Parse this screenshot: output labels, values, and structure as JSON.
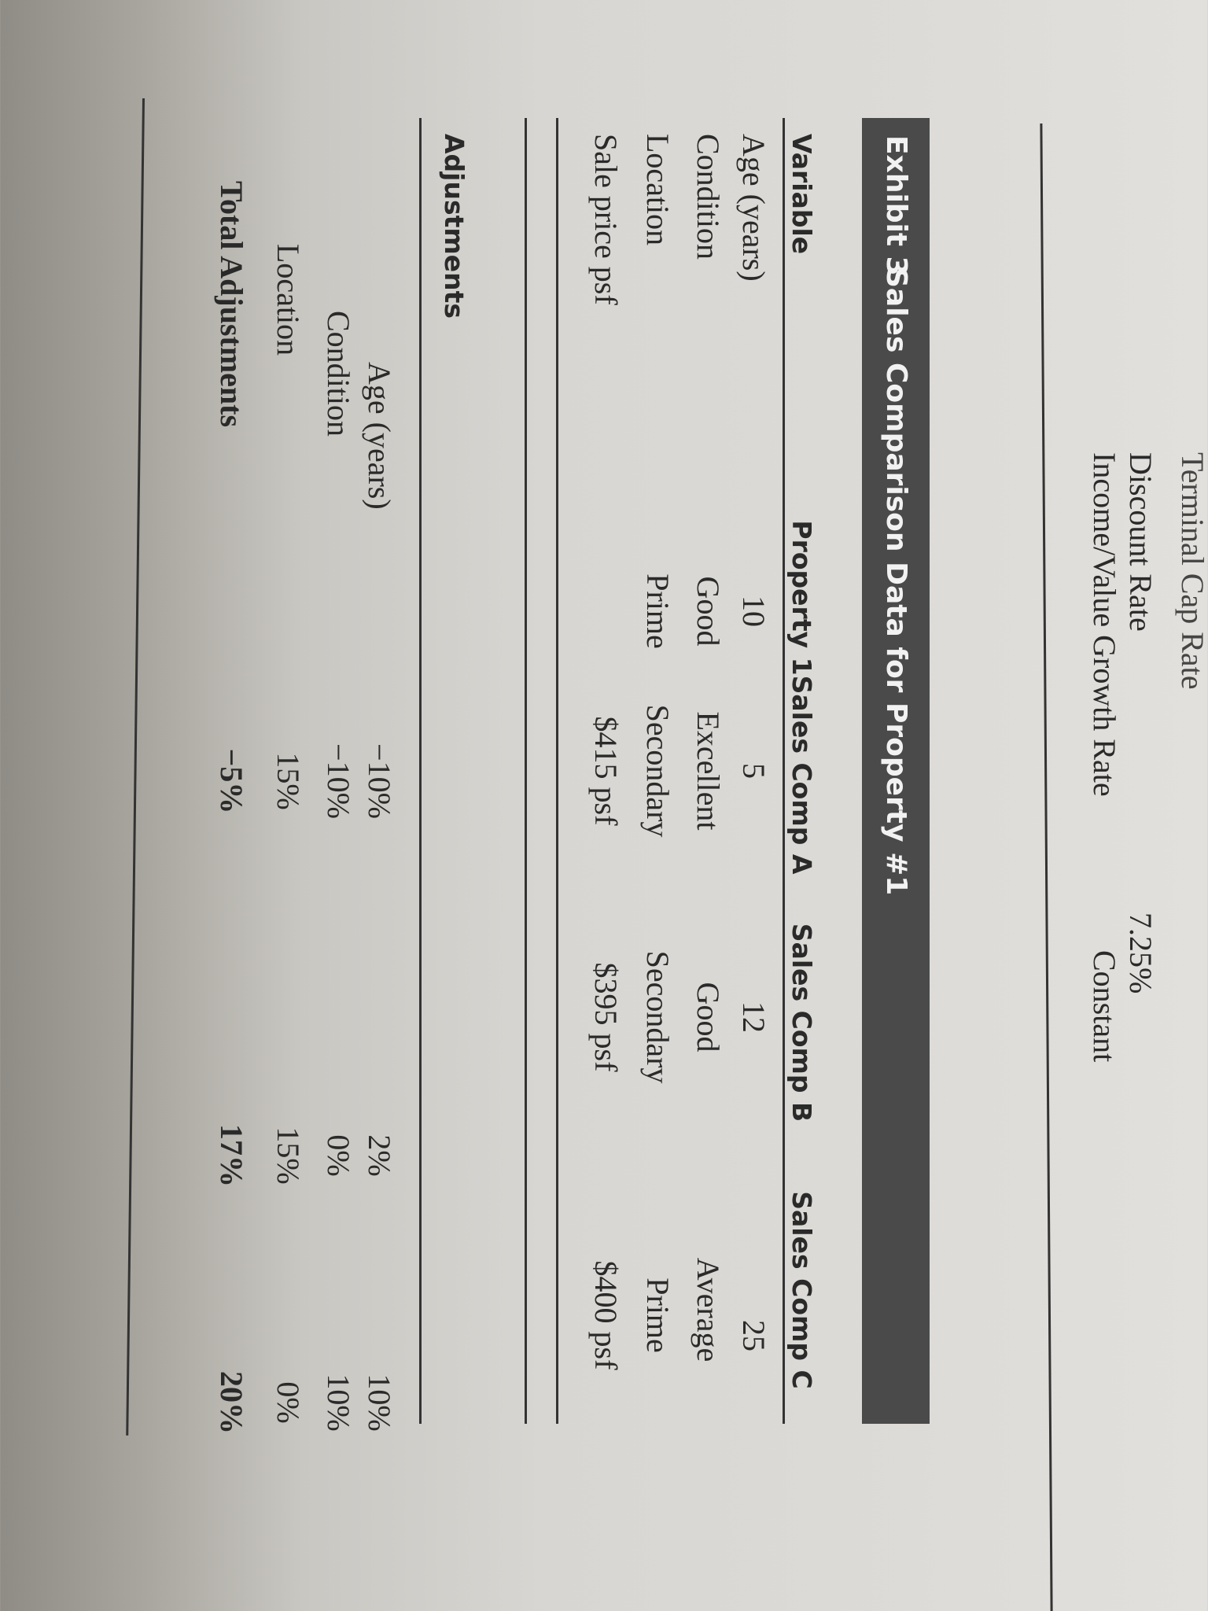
{
  "top_table": {
    "rows": [
      {
        "label": "Terminal Cap Rate",
        "value": ""
      },
      {
        "label": "Discount Rate",
        "value": "7.25%"
      },
      {
        "label": "Income/Value Growth Rate",
        "value": "Constant"
      }
    ]
  },
  "exhibit": {
    "number": "Exhibit 3",
    "title": "Sales Comparison Data for Property #1",
    "columns": [
      "Variable",
      "Property 1",
      "Sales Comp A",
      "Sales Comp B",
      "Sales Comp C"
    ],
    "rows": [
      [
        "Age (years)",
        "10",
        "5",
        "12",
        "25"
      ],
      [
        "Condition",
        "Good",
        "Excellent",
        "Good",
        "Average"
      ],
      [
        "Location",
        "Prime",
        "Secondary",
        "Secondary",
        "Prime"
      ],
      [
        "Sale price psf",
        "",
        "$415 psf",
        "$395 psf",
        "$400 psf"
      ]
    ],
    "adjustments_heading": "Adjustments",
    "adjustments": [
      [
        "Age (years)",
        "−10%",
        "2%",
        "10%"
      ],
      [
        "Condition",
        "−10%",
        "0%",
        "10%"
      ],
      [
        "Location",
        "15%",
        "15%",
        "0%"
      ],
      [
        "Total Adjustments",
        "−5%",
        "17%",
        "20%"
      ]
    ]
  },
  "colors": {
    "header_bar": "#4a4a4a",
    "header_text": "#f2f2f2",
    "paper": "#dddbd7"
  }
}
